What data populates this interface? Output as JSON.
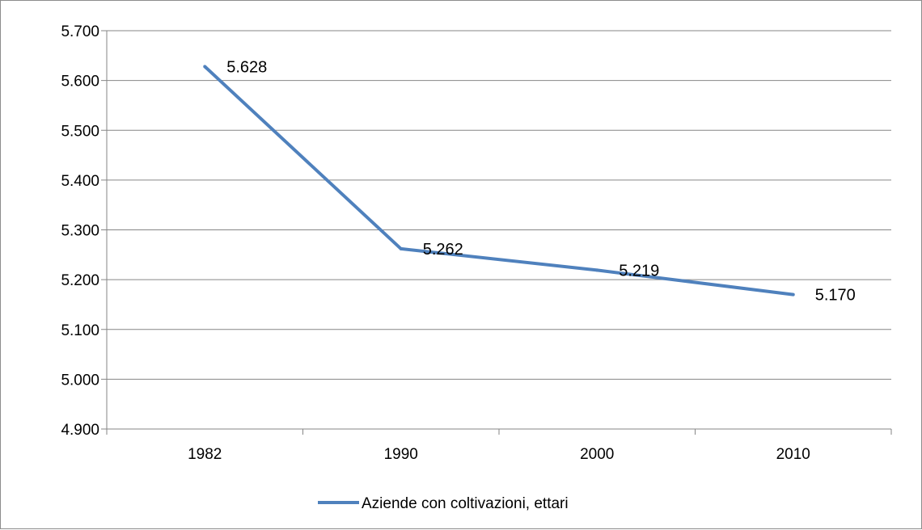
{
  "chart_data": {
    "type": "line",
    "title": "",
    "xlabel": "",
    "ylabel": "",
    "categories": [
      "1982",
      "1990",
      "2000",
      "2010"
    ],
    "series": [
      {
        "name": "Aziende con coltivazioni, ettari",
        "values": [
          5628,
          5262,
          5219,
          5170
        ],
        "data_labels": [
          "5.628",
          "5.262",
          "5.219",
          "5.170"
        ],
        "color": "#4f81bd"
      }
    ],
    "ylim": [
      4900,
      5700
    ],
    "yticks": [
      4900,
      5000,
      5100,
      5200,
      5300,
      5400,
      5500,
      5600,
      5700
    ],
    "ytick_labels": [
      "4.900",
      "5.000",
      "5.100",
      "5.200",
      "5.300",
      "5.400",
      "5.500",
      "5.600",
      "5.700"
    ],
    "grid": true,
    "legend_position": "bottom"
  }
}
